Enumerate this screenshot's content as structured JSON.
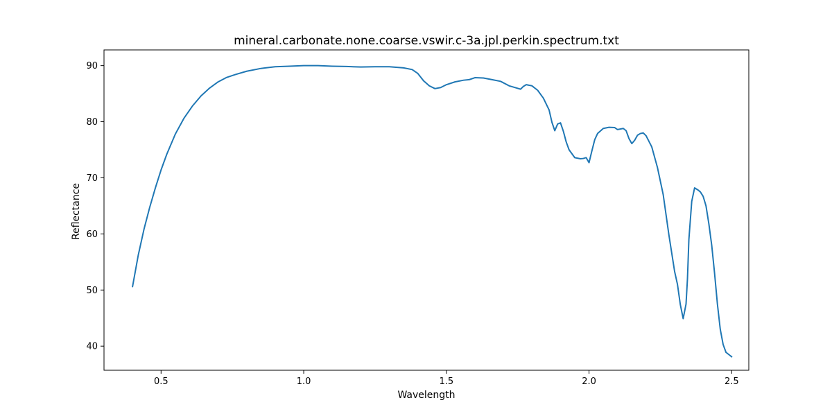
{
  "chart_data": {
    "type": "line",
    "title": "mineral.carbonate.none.coarse.vswir.c-3a.jpl.perkin.spectrum.txt",
    "xlabel": "Wavelength",
    "ylabel": "Reflectance",
    "xlim": [
      0.3,
      2.56
    ],
    "ylim": [
      35.7,
      92.8
    ],
    "xticks": [
      0.5,
      1.0,
      1.5,
      2.0,
      2.5
    ],
    "xtick_labels": [
      "0.5",
      "1.0",
      "1.5",
      "2.0",
      "2.5"
    ],
    "yticks": [
      40,
      50,
      60,
      70,
      80,
      90
    ],
    "ytick_labels": [
      "40",
      "50",
      "60",
      "70",
      "80",
      "90"
    ],
    "grid": false,
    "line_color": "#1f77b4",
    "series": [
      {
        "x": [
          0.4,
          0.42,
          0.44,
          0.46,
          0.48,
          0.5,
          0.52,
          0.55,
          0.58,
          0.61,
          0.64,
          0.67,
          0.7,
          0.73,
          0.76,
          0.8,
          0.85,
          0.9,
          0.95,
          1.0,
          1.05,
          1.1,
          1.15,
          1.2,
          1.25,
          1.3,
          1.35,
          1.38,
          1.4,
          1.42,
          1.44,
          1.46,
          1.48,
          1.5,
          1.53,
          1.56,
          1.58,
          1.6,
          1.63,
          1.66,
          1.69,
          1.72,
          1.74,
          1.76,
          1.77,
          1.78,
          1.8,
          1.82,
          1.84,
          1.86,
          1.87,
          1.88,
          1.89,
          1.9,
          1.91,
          1.92,
          1.93,
          1.95,
          1.97,
          1.98,
          1.99,
          2.0,
          2.01,
          2.02,
          2.03,
          2.05,
          2.07,
          2.09,
          2.1,
          2.12,
          2.13,
          2.14,
          2.15,
          2.16,
          2.17,
          2.18,
          2.19,
          2.2,
          2.22,
          2.24,
          2.26,
          2.28,
          2.3,
          2.31,
          2.32,
          2.33,
          2.34,
          2.345,
          2.35,
          2.36,
          2.37,
          2.38,
          2.39,
          2.4,
          2.41,
          2.42,
          2.43,
          2.44,
          2.45,
          2.46,
          2.47,
          2.48,
          2.49,
          2.5
        ],
        "y": [
          50.6,
          56.2,
          60.8,
          64.7,
          68.2,
          71.4,
          74.2,
          77.8,
          80.6,
          82.8,
          84.6,
          86.0,
          87.1,
          87.9,
          88.4,
          89.0,
          89.5,
          89.8,
          89.9,
          90.0,
          90.0,
          89.9,
          89.85,
          89.75,
          89.8,
          89.8,
          89.6,
          89.3,
          88.6,
          87.3,
          86.4,
          85.9,
          86.1,
          86.6,
          87.1,
          87.4,
          87.5,
          87.85,
          87.8,
          87.5,
          87.2,
          86.4,
          86.1,
          85.8,
          86.3,
          86.6,
          86.4,
          85.6,
          84.2,
          82.1,
          79.9,
          78.4,
          79.6,
          79.8,
          78.3,
          76.4,
          75.0,
          73.6,
          73.4,
          73.45,
          73.6,
          72.7,
          74.8,
          76.8,
          77.9,
          78.8,
          79.0,
          78.95,
          78.6,
          78.8,
          78.4,
          77.0,
          76.1,
          76.7,
          77.6,
          77.9,
          78.0,
          77.5,
          75.5,
          71.8,
          67.0,
          59.8,
          53.3,
          51.0,
          47.4,
          44.9,
          47.5,
          52.0,
          59.0,
          65.8,
          68.2,
          67.9,
          67.5,
          66.7,
          65.0,
          61.8,
          58.0,
          53.0,
          47.5,
          43.0,
          40.3,
          38.9,
          38.5,
          38.1
        ]
      }
    ]
  }
}
